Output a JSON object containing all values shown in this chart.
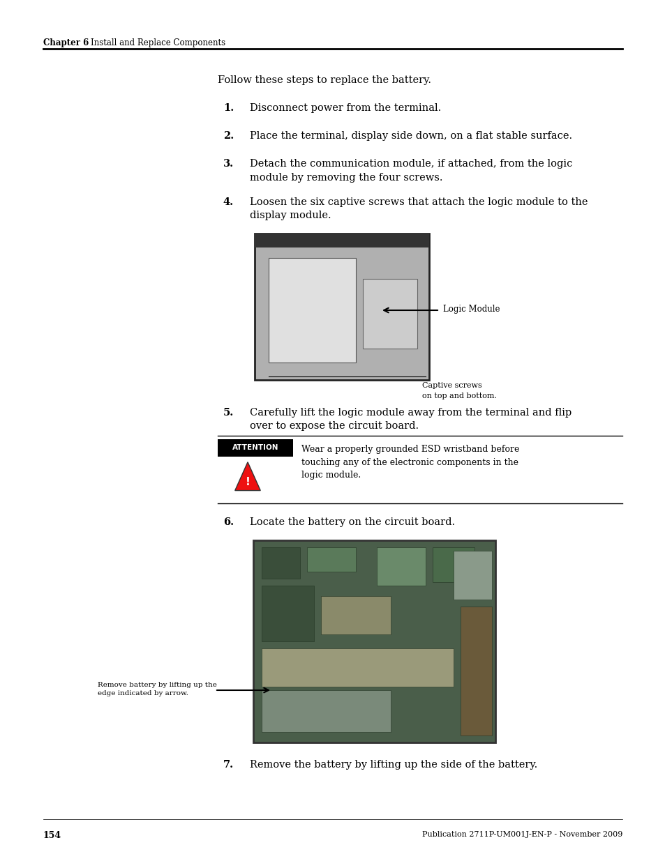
{
  "page_width": 9.54,
  "page_height": 12.35,
  "bg_color": "#ffffff",
  "chapter_label": "Chapter 6",
  "chapter_title": "Install and Replace Components",
  "page_number": "154",
  "publication": "Publication 2711P-UM001J-EN-P - November 2009",
  "intro_text": "Follow these steps to replace the battery.",
  "steps": [
    {
      "num": "1.",
      "text": "Disconnect power from the terminal."
    },
    {
      "num": "2.",
      "text": "Place the terminal, display side down, on a flat stable surface."
    },
    {
      "num": "3.",
      "text": "Detach the communication module, if attached, from the logic\nmodule by removing the four screws."
    },
    {
      "num": "4.",
      "text": "Loosen the six captive screws that attach the logic module to the\ndisplay module."
    },
    {
      "num": "5.",
      "text": "Carefully lift the logic module away from the terminal and flip\nover to expose the circuit board."
    },
    {
      "num": "6.",
      "text": "Locate the battery on the circuit board."
    },
    {
      "num": "7.",
      "text": "Remove the battery by lifting up the side of the battery."
    }
  ],
  "image1_label": "Logic Module",
  "image1_caption1": "Captive screws",
  "image1_caption2": "on top and bottom.",
  "attention_label": "ATTENTION",
  "attention_text": "Wear a properly grounded ESD wristband before\ntouching any of the electronic components in the\nlogic module.",
  "image2_label": "Remove battery by lifting up the\nedge indicated by arrow."
}
